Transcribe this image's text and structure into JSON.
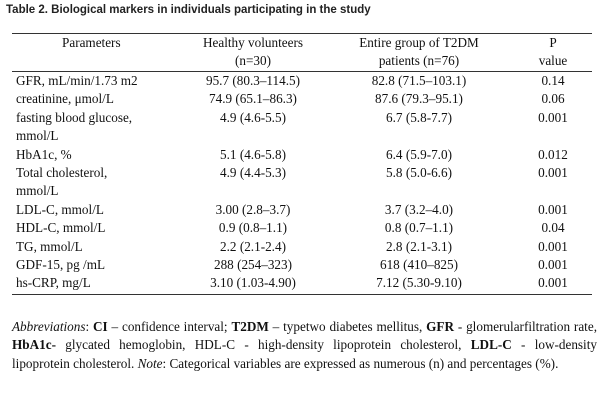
{
  "caption": "Table 2. Biological markers in individuals participating in the study",
  "table": {
    "headers": [
      [
        "Parameters"
      ],
      [
        "Healthy volunteers",
        "(n=30)"
      ],
      [
        "Entire group of T2DM",
        "patients (n=76)"
      ],
      [
        "P",
        "value"
      ]
    ],
    "rows": [
      {
        "param": [
          "GFR, mL/min/1.73 m2"
        ],
        "healthy": "95.7 (80.3–114.5)",
        "t2dm": "82.8 (71.5–103.1)",
        "p": "0.14"
      },
      {
        "param": [
          "creatinine, μmol/L"
        ],
        "healthy": "74.9 (65.1–86.3)",
        "t2dm": "87.6 (79.3–95.1)",
        "p": "0.06"
      },
      {
        "param": [
          "fasting blood glucose,",
          "mmol/L"
        ],
        "healthy": "4.9 (4.6-5.5)",
        "t2dm": "6.7 (5.8-7.7)",
        "p": "0.001"
      },
      {
        "param": [
          "HbA1c, %"
        ],
        "healthy": "5.1 (4.6-5.8)",
        "t2dm": "6.4 (5.9-7.0)",
        "p": "0.012"
      },
      {
        "param": [
          "Total cholesterol,",
          "mmol/L"
        ],
        "healthy": "4.9 (4.4-5.3)",
        "t2dm": "5.8 (5.0-6.6)",
        "p": "0.001"
      },
      {
        "param": [
          "LDL-C, mmol/L"
        ],
        "healthy": "3.00 (2.8–3.7)",
        "t2dm": "3.7 (3.2–4.0)",
        "p": "0.001"
      },
      {
        "param": [
          "HDL-C, mmol/L"
        ],
        "healthy": "0.9 (0.8–1.1)",
        "t2dm": "0.8 (0.7–1.1)",
        "p": "0.04"
      },
      {
        "param": [
          "TG, mmol/L"
        ],
        "healthy": "2.2 (2.1-2.4)",
        "t2dm": "2.8 (2.1-3.1)",
        "p": "0.001"
      },
      {
        "param": [
          "GDF-15, pg /mL"
        ],
        "healthy": "288 (254–323)",
        "t2dm": "618 (410–825)",
        "p": "0.001"
      },
      {
        "param": [
          "hs-CRP, mg/L"
        ],
        "healthy": "3.10 (1.03-4.90)",
        "t2dm": "7.12 (5.30-9.10)",
        "p": "0.001"
      }
    ]
  },
  "footnote": {
    "abbrev_label": "Abbreviations",
    "ci_term": "CI",
    "ci_def": " – confidence interval; ",
    "t2dm_term": "T2DM",
    "t2dm_def": " – typetwo diabetes mellitus, ",
    "gfr_term": "GFR",
    "gfr_def": " - glomerularfiltration rate, ",
    "hba1c_term": "HbA1c-",
    "hba1c_def": " glycated hemoglobin, HDL-C - high-density lipoprotein cholesterol, ",
    "ldl_term": "LDL-C",
    "ldl_def": " - low-density lipoprotein cholesterol. ",
    "note_label": "Note",
    "note_text": ": Categorical variables are expressed as numerous (n) and percentages (%)."
  }
}
